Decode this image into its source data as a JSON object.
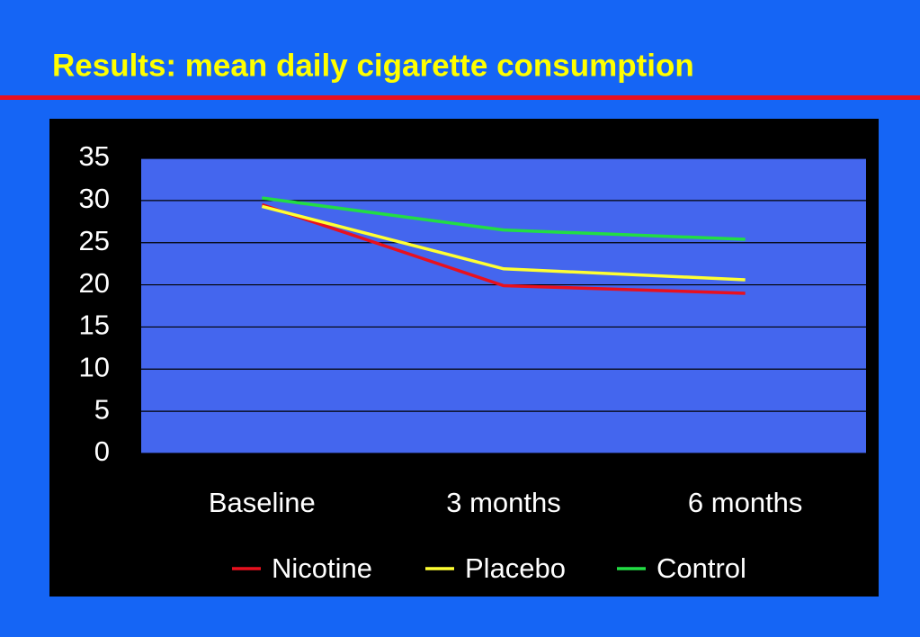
{
  "chart_data": {
    "type": "line",
    "title": "Results: mean daily cigarette consumption",
    "categories": [
      "Baseline",
      "3 months",
      "6 months"
    ],
    "series": [
      {
        "name": "Nicotine",
        "color": "#e8101e",
        "values": [
          29.5,
          19.9,
          19.0
        ]
      },
      {
        "name": "Placebo",
        "color": "#ffff33",
        "values": [
          29.3,
          21.9,
          20.6
        ]
      },
      {
        "name": "Control",
        "color": "#22dd44",
        "values": [
          30.3,
          26.5,
          25.4
        ]
      }
    ],
    "ylim": [
      0,
      35
    ],
    "yticks": [
      0,
      5,
      10,
      15,
      20,
      25,
      30,
      35
    ],
    "grid": true,
    "legend": "bottom"
  }
}
